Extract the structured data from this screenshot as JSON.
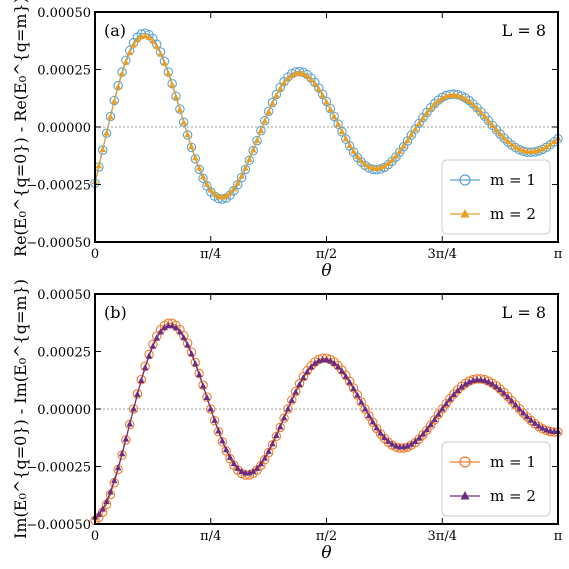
{
  "chart_data": [
    {
      "type": "line",
      "panel_label": "(a)",
      "size_label": "L = 8",
      "xlabel": "θ",
      "ylabel": "Re(E₀^{q=0}) - Re(E₀^{q=m})",
      "xlim": [
        0,
        3.14159
      ],
      "ylim": [
        -0.0005,
        0.0005
      ],
      "xticks": [
        "0",
        "π/4",
        "π/2",
        "3π/4",
        "π"
      ],
      "yticks": [
        "0.00050",
        "0.00025",
        "0.00000",
        "−0.00025",
        "−0.00050"
      ],
      "grid": false,
      "zero_line": true,
      "legend_position": "bottom-right",
      "wave": {
        "amplitude": 0.00047,
        "frequency": 6.0,
        "phase": -2.1,
        "decay": 0.5
      },
      "series": [
        {
          "name": "m = 1",
          "marker": "circle-open",
          "color": "#5ba3d0",
          "scale": 1.03
        },
        {
          "name": "m = 2",
          "marker": "triangle-filled",
          "color": "#e6a028",
          "scale": 1.0
        }
      ]
    },
    {
      "type": "line",
      "panel_label": "(b)",
      "size_label": "L = 8",
      "xlabel": "θ",
      "ylabel": "Im(E₀^{q=0}) - Im(E₀^{q=m})",
      "xlim": [
        0,
        3.14159
      ],
      "ylim": [
        -0.0005,
        0.0005
      ],
      "xticks": [
        "0",
        "π/4",
        "π/2",
        "3π/4",
        "π"
      ],
      "yticks": [
        "0.00050",
        "0.00025",
        "0.00000",
        "−0.00025",
        "−0.00050"
      ],
      "grid": false,
      "zero_line": true,
      "legend_position": "bottom-right",
      "wave": {
        "amplitude": 0.00047,
        "frequency": 6.0,
        "phase": 3.14159,
        "decay": 0.5
      },
      "series": [
        {
          "name": "m = 1",
          "marker": "circle-open",
          "color": "#f07d2c",
          "scale": 1.03
        },
        {
          "name": "m = 2",
          "marker": "triangle-filled",
          "color": "#6b2d82",
          "scale": 1.0
        }
      ]
    }
  ]
}
